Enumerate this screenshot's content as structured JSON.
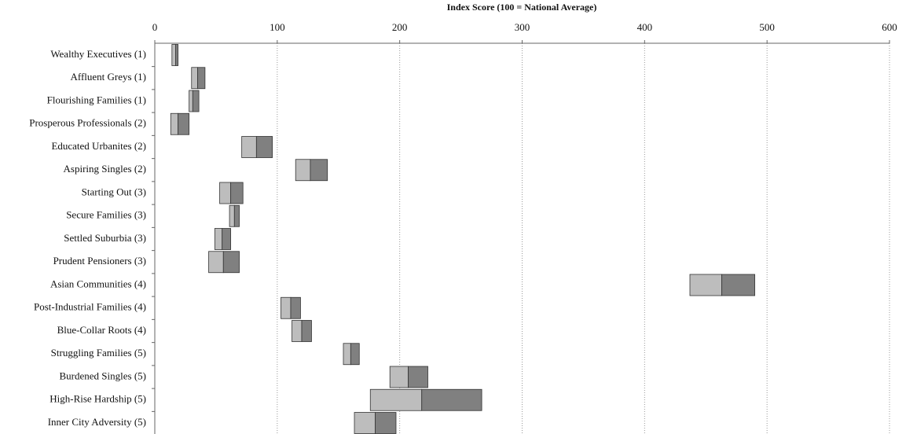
{
  "chart_data": {
    "type": "range-box",
    "x_label": "Index Score (100 = National Average)",
    "categories": [
      "Wealthy Executives (1)",
      "Affluent Greys (1)",
      "Flourishing Families (1)",
      "Prosperous Professionals (2)",
      "Educated Urbanites (2)",
      "Aspiring Singles (2)",
      "Starting Out (3)",
      "Secure Families (3)",
      "Settled Suburbia (3)",
      "Prudent Pensioners (3)",
      "Asian Communities (4)",
      "Post-Industrial Families (4)",
      "Blue-Collar Roots (4)",
      "Struggling Families (5)",
      "Burdened Singles (5)",
      "High-Rise Hardship (5)",
      "Inner City Adversity (5)"
    ],
    "lows": [
      14,
      30,
      28,
      13,
      71,
      115,
      53,
      61,
      49,
      44,
      437,
      103,
      112,
      154,
      192,
      176,
      163
    ],
    "mids": [
      17,
      35,
      31,
      19,
      83,
      127,
      62,
      65,
      55,
      56,
      463,
      111,
      120,
      160,
      207,
      218,
      180
    ],
    "highs": [
      19,
      41,
      36,
      28,
      96,
      141,
      72,
      69,
      62,
      69,
      490,
      119,
      128,
      167,
      223,
      267,
      197
    ],
    "lower_color": "#bdbdbd",
    "upper_color": "#808080",
    "xlim": [
      0,
      600
    ],
    "xticks": [
      0,
      100,
      200,
      300,
      400,
      500,
      600
    ],
    "grid": true
  }
}
